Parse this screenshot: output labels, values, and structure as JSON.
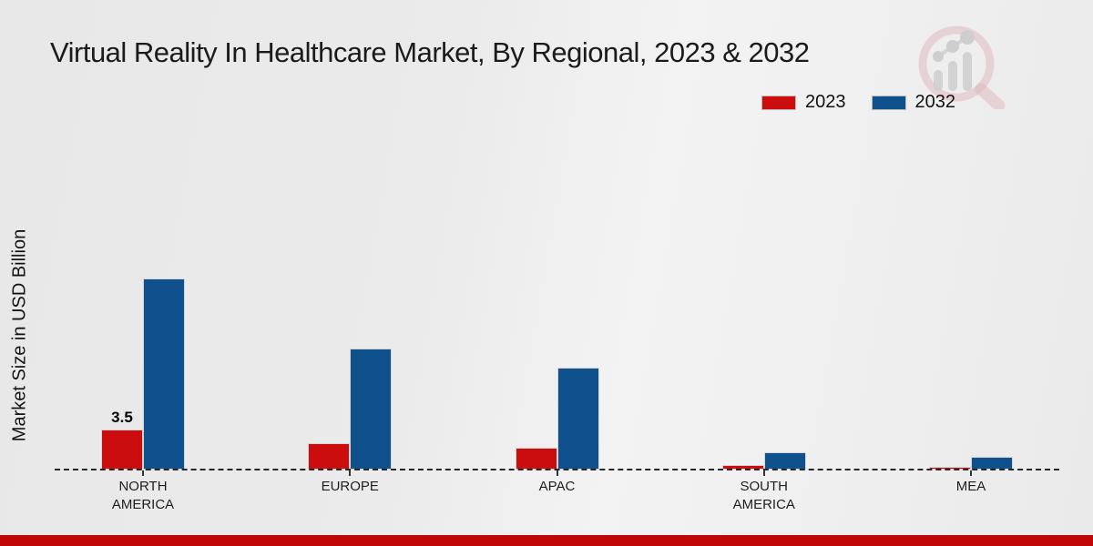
{
  "title": "Virtual Reality In Healthcare Market, By Regional, 2023 & 2032",
  "ylabel": "Market Size in USD Billion",
  "legend": {
    "items": [
      {
        "label": "2023",
        "color": "#cc0d0d"
      },
      {
        "label": "2032",
        "color": "#0f518c"
      }
    ]
  },
  "colors": {
    "series_2023": "#cc0d0d",
    "series_2032": "#0f518c",
    "bottom_band": "#bf0707",
    "baseline": "#272727",
    "background": "#eaeaea"
  },
  "chart_data": {
    "type": "bar",
    "title": "Virtual Reality In Healthcare Market, By Regional, 2023 & 2032",
    "xlabel": "",
    "ylabel": "Market Size in USD Billion",
    "categories": [
      "NORTH AMERICA",
      "EUROPE",
      "APAC",
      "SOUTH AMERICA",
      "MEA"
    ],
    "series": [
      {
        "name": "2023",
        "color": "#cc0d0d",
        "values": [
          3.5,
          2.3,
          1.9,
          0.4,
          0.2
        ]
      },
      {
        "name": "2032",
        "color": "#0f518c",
        "values": [
          16.5,
          10.5,
          8.8,
          1.5,
          1.1
        ]
      }
    ],
    "data_labels": [
      {
        "category_index": 0,
        "series_index": 0,
        "text": "3.5"
      }
    ],
    "ylim": [
      0,
      18
    ],
    "grid": false,
    "axis_style": "dashed zero baseline only",
    "legend_position": "top-right",
    "units": "USD Billion"
  }
}
